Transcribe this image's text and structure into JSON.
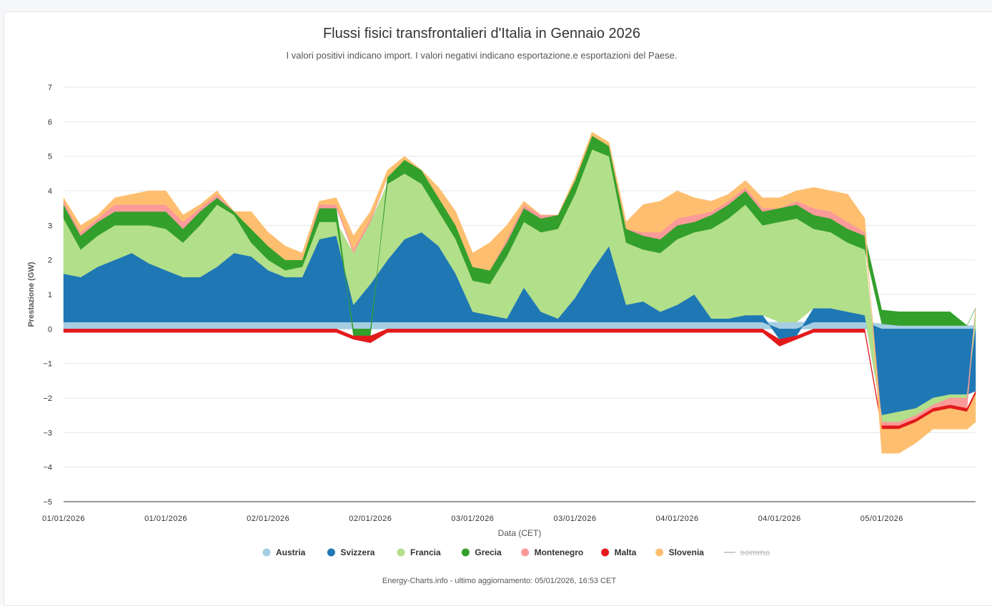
{
  "chart_data": {
    "type": "area",
    "title": "Flussi fisici transfrontalieri d'Italia in Gennaio 2026",
    "subtitle": "I valori positivi indicano import. I valori negativi indicano esportazione.e esportazioni del Paese.",
    "xlabel": "Data (CET)",
    "ylabel": "Prestazione (GW)",
    "ylim": [
      -5,
      7
    ],
    "yticks": [
      7,
      6,
      5,
      4,
      3,
      2,
      1,
      0,
      -1,
      -2,
      -3,
      -4,
      -5
    ],
    "xtick_labels": [
      "01/01/2026",
      "01/01/2026",
      "02/01/2026",
      "02/01/2026",
      "03/01/2026",
      "03/01/2026",
      "04/01/2026",
      "04/01/2026",
      "05/01/2026"
    ],
    "xtick_hours": [
      0,
      12,
      24,
      36,
      48,
      60,
      72,
      84,
      96
    ],
    "x_hours": [
      0,
      2,
      4,
      6,
      8,
      10,
      12,
      14,
      16,
      18,
      20,
      22,
      24,
      26,
      28,
      30,
      32,
      34,
      36,
      38,
      40,
      42,
      44,
      46,
      48,
      50,
      52,
      54,
      56,
      58,
      60,
      62,
      64,
      66,
      68,
      70,
      72,
      74,
      76,
      78,
      80,
      82,
      84,
      86,
      88,
      90,
      92,
      94,
      96,
      98,
      100,
      102,
      104,
      106,
      107
    ],
    "grid": true,
    "legend_position": "bottom",
    "series": [
      {
        "name": "Austria",
        "color": "#a6cee3",
        "values": [
          0.2,
          0.2,
          0.2,
          0.2,
          0.2,
          0.2,
          0.2,
          0.2,
          0.2,
          0.2,
          0.2,
          0.2,
          0.2,
          0.2,
          0.2,
          0.2,
          0.2,
          0.2,
          0.2,
          0.2,
          0.2,
          0.2,
          0.2,
          0.2,
          0.2,
          0.2,
          0.2,
          0.2,
          0.2,
          0.2,
          0.2,
          0.2,
          0.2,
          0.2,
          0.2,
          0.2,
          0.2,
          0.2,
          0.2,
          0.2,
          0.2,
          0.2,
          0.2,
          0.2,
          0.2,
          0.2,
          0.2,
          0.2,
          0.15,
          0.1,
          0.1,
          0.1,
          0.1,
          0.1,
          0.1
        ]
      },
      {
        "name": "Svizzera",
        "color": "#1f78b4",
        "values": [
          1.4,
          1.3,
          1.6,
          1.8,
          2.0,
          1.7,
          1.5,
          1.3,
          1.3,
          1.6,
          2.0,
          1.9,
          1.5,
          1.3,
          1.3,
          2.4,
          2.5,
          0.5,
          1.1,
          1.8,
          2.4,
          2.6,
          2.2,
          1.4,
          0.3,
          0.2,
          0.1,
          1.0,
          0.3,
          0.1,
          0.7,
          1.5,
          2.2,
          0.5,
          0.6,
          0.3,
          0.5,
          0.8,
          0.1,
          0.1,
          0.2,
          0.2,
          -0.3,
          -0.2,
          0.4,
          0.4,
          0.3,
          0.2,
          -2.5,
          -2.4,
          -2.3,
          -2.0,
          -1.9,
          -1.9,
          -1.8
        ]
      },
      {
        "name": "Francia",
        "color": "#b2df8a",
        "values": [
          1.6,
          0.8,
          0.9,
          1.0,
          0.8,
          1.1,
          1.2,
          1.0,
          1.5,
          1.8,
          1.1,
          0.4,
          0.3,
          0.2,
          0.3,
          0.5,
          0.4,
          1.5,
          1.8,
          2.2,
          1.9,
          1.4,
          1.0,
          1.0,
          0.9,
          0.9,
          1.8,
          1.9,
          2.3,
          2.6,
          3.0,
          3.5,
          2.6,
          1.8,
          1.5,
          1.7,
          1.9,
          1.8,
          2.6,
          2.9,
          3.2,
          2.6,
          2.9,
          3.0,
          2.3,
          2.2,
          2.0,
          1.9,
          -0.2,
          -0.3,
          -0.2,
          -0.2,
          -0.1,
          -0.1,
          0.5
        ]
      },
      {
        "name": "Grecia",
        "color": "#33a02c",
        "values": [
          0.4,
          0.4,
          0.4,
          0.4,
          0.4,
          0.4,
          0.5,
          0.4,
          0.4,
          0.2,
          0.1,
          0.4,
          0.4,
          0.3,
          0.2,
          0.4,
          0.4,
          -0.2,
          -0.2,
          0.2,
          0.4,
          0.4,
          0.4,
          0.4,
          0.4,
          0.4,
          0.4,
          0.4,
          0.4,
          0.4,
          0.4,
          0.4,
          0.3,
          0.4,
          0.4,
          0.4,
          0.4,
          0.3,
          0.4,
          0.4,
          0.4,
          0.4,
          0.4,
          0.4,
          0.4,
          0.4,
          0.4,
          0.4,
          0.4,
          0.4,
          0.4,
          0.4,
          0.4,
          0.0,
          0.0
        ]
      },
      {
        "name": "Montenegro",
        "color": "#fb9a99",
        "values": [
          0.1,
          0.1,
          0.1,
          0.2,
          0.2,
          0.2,
          0.2,
          0.2,
          0.1,
          0.1,
          0.0,
          0.0,
          0.0,
          0.0,
          0.0,
          0.1,
          0.1,
          0.1,
          0.1,
          0.0,
          0.0,
          0.0,
          0.0,
          0.0,
          0.0,
          0.0,
          0.1,
          0.1,
          0.1,
          0.0,
          0.0,
          0.0,
          0.0,
          0.0,
          0.1,
          0.2,
          0.2,
          0.2,
          0.1,
          0.1,
          0.1,
          0.1,
          0.0,
          0.1,
          0.2,
          0.2,
          0.2,
          0.1,
          -0.1,
          -0.1,
          -0.1,
          -0.1,
          -0.2,
          -0.3,
          0.0
        ]
      },
      {
        "name": "Malta",
        "color": "#e31a1c",
        "values": [
          -0.1,
          -0.1,
          -0.1,
          -0.1,
          -0.1,
          -0.1,
          -0.1,
          -0.1,
          -0.1,
          -0.1,
          -0.1,
          -0.1,
          -0.1,
          -0.1,
          -0.1,
          -0.1,
          -0.1,
          -0.1,
          -0.2,
          -0.1,
          -0.1,
          -0.1,
          -0.1,
          -0.1,
          -0.1,
          -0.1,
          -0.1,
          -0.1,
          -0.1,
          -0.1,
          -0.1,
          -0.1,
          -0.1,
          -0.1,
          -0.1,
          -0.1,
          -0.1,
          -0.1,
          -0.1,
          -0.1,
          -0.1,
          -0.1,
          -0.2,
          -0.1,
          -0.1,
          -0.1,
          -0.1,
          -0.1,
          -0.1,
          -0.1,
          -0.1,
          -0.1,
          -0.1,
          -0.1,
          -0.1
        ]
      },
      {
        "name": "Slovenia",
        "color": "#fdbf6f",
        "values": [
          0.1,
          0.2,
          0.1,
          0.2,
          0.3,
          0.4,
          0.4,
          0.2,
          0.1,
          0.1,
          0.0,
          0.5,
          0.4,
          0.4,
          0.2,
          0.1,
          0.2,
          0.4,
          0.2,
          0.2,
          0.1,
          0.0,
          0.3,
          0.4,
          0.4,
          0.8,
          0.4,
          0.1,
          0.0,
          0.0,
          0.1,
          0.1,
          0.1,
          0.2,
          0.8,
          0.9,
          0.8,
          0.5,
          0.3,
          0.2,
          0.2,
          0.3,
          0.3,
          0.3,
          0.6,
          0.6,
          0.8,
          0.4,
          -0.7,
          -0.7,
          -0.6,
          -0.5,
          -0.6,
          -0.5,
          -0.8
        ]
      }
    ],
    "legend": [
      {
        "name": "Austria",
        "color": "#a6cee3",
        "symbol": "dot"
      },
      {
        "name": "Svizzera",
        "color": "#1f78b4",
        "symbol": "dot"
      },
      {
        "name": "Francia",
        "color": "#b2df8a",
        "symbol": "dot"
      },
      {
        "name": "Grecia",
        "color": "#33a02c",
        "symbol": "dot"
      },
      {
        "name": "Montenegro",
        "color": "#fb9a99",
        "symbol": "dot"
      },
      {
        "name": "Malta",
        "color": "#e31a1c",
        "symbol": "dot"
      },
      {
        "name": "Slovenia",
        "color": "#fdbf6f",
        "symbol": "dot"
      },
      {
        "name": "somma",
        "color": "#cccccc",
        "symbol": "line",
        "hidden": true
      }
    ]
  },
  "footer": {
    "source": "Energy-Charts.info - ultimo aggiornamento: 05/01/2026, 16:53 CET"
  }
}
